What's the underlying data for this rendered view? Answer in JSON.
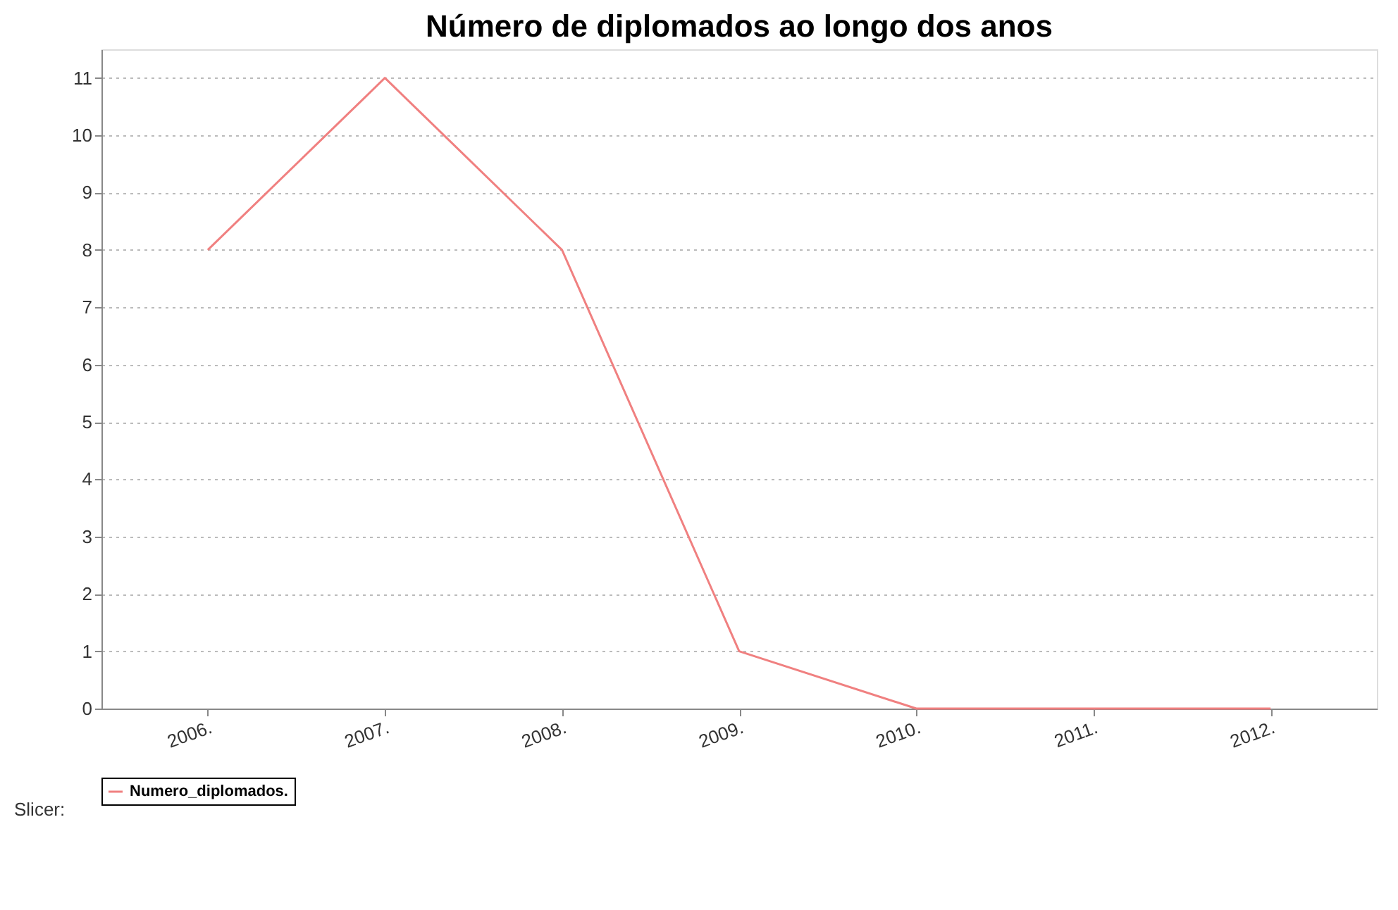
{
  "chart_data": {
    "type": "line",
    "title": "Número de diplomados ao longo dos anos",
    "categories": [
      "2006.",
      "2007.",
      "2008.",
      "2009.",
      "2010.",
      "2011.",
      "2012."
    ],
    "series": [
      {
        "name": "Numero_diplomados.",
        "color": "#f08080",
        "values": [
          8,
          11,
          8,
          1,
          0,
          0,
          0
        ]
      }
    ],
    "ylim": [
      0,
      11.5
    ],
    "yticks": [
      0,
      1,
      2,
      3,
      4,
      5,
      6,
      7,
      8,
      9,
      10,
      11
    ],
    "grid": "y",
    "legend": "bottom",
    "marker": "none",
    "line_style": "solid",
    "annotations": [
      "Slicer:"
    ]
  }
}
